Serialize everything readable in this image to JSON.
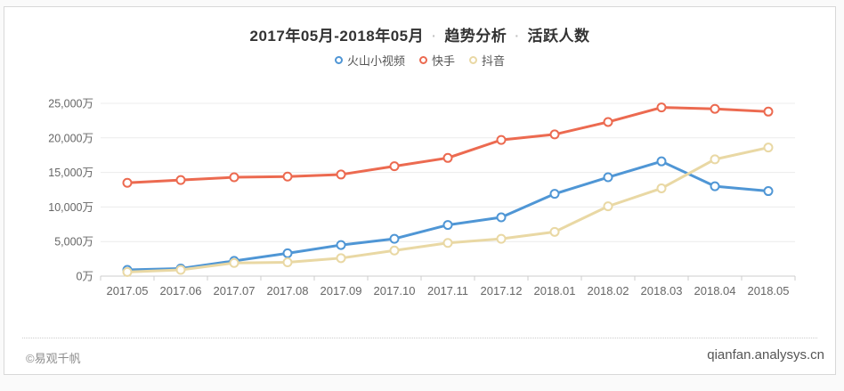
{
  "title": {
    "range": "2017年05月-2018年05月",
    "separator": "·",
    "analysis": "趋势分析",
    "metric": "活跃人数"
  },
  "footer": {
    "copyright": "©易观千帆",
    "site": "qianfan.analysys.cn"
  },
  "chart_data": {
    "type": "line",
    "title": "2017年05月-2018年05月 · 趋势分析 · 活跃人数",
    "unit": "万",
    "grid": true,
    "legend_position": "top",
    "categories": [
      "2017.05",
      "2017.06",
      "2017.07",
      "2017.08",
      "2017.09",
      "2017.10",
      "2017.11",
      "2017.12",
      "2018.01",
      "2018.02",
      "2018.03",
      "2018.04",
      "2018.05"
    ],
    "series": [
      {
        "name": "火山小视频",
        "color": "#4f96d5",
        "values": [
          900,
          1100,
          2200,
          3300,
          4500,
          5400,
          7400,
          8500,
          11900,
          14300,
          16600,
          13000,
          12300
        ]
      },
      {
        "name": "快手",
        "color": "#ec6a50",
        "values": [
          13500,
          13900,
          14300,
          14400,
          14700,
          15900,
          17100,
          19700,
          20500,
          22300,
          24400,
          24200,
          23800
        ]
      },
      {
        "name": "抖音",
        "color": "#e9d8a4",
        "values": [
          600,
          900,
          1900,
          2000,
          2600,
          3700,
          4800,
          5400,
          6400,
          10100,
          12700,
          16900,
          18600
        ]
      }
    ],
    "ylim": [
      0,
      25000
    ],
    "y_ticks": [
      0,
      5000,
      10000,
      15000,
      20000,
      25000
    ],
    "y_tick_labels": [
      "0万",
      "5,000万",
      "10,000万",
      "15,000万",
      "20,000万",
      "25,000万"
    ],
    "colors": {
      "grid_line": "#ececec",
      "axis_line": "#cccccc",
      "axis_text": "#666666"
    }
  }
}
